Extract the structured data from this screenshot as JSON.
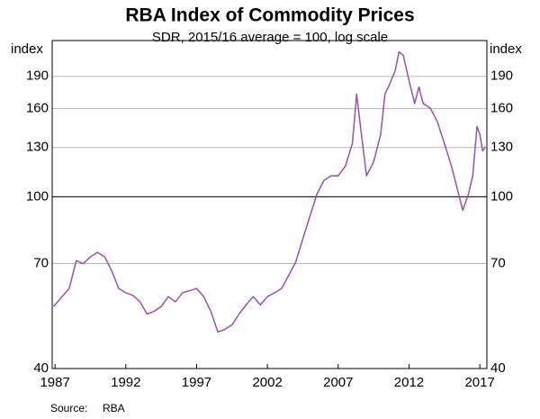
{
  "chart_data": {
    "type": "line",
    "title": "RBA Index of Commodity Prices",
    "subtitle": "SDR, 2015/16 average = 100, log scale",
    "y_label": "index",
    "source_label": "Source:",
    "source": "RBA",
    "color": "#9b4fb4",
    "log_y": true,
    "grid": true,
    "reference_line": 100,
    "xlim": [
      1986.8,
      2017.5
    ],
    "xticks": [
      1987,
      1992,
      1997,
      2002,
      2007,
      2012,
      2017
    ],
    "ylim": [
      40,
      230
    ],
    "yticks": [
      40,
      70,
      100,
      130,
      160,
      190
    ],
    "x": [
      1986.9,
      1987.5,
      1988.0,
      1988.5,
      1989.0,
      1989.5,
      1990.0,
      1990.5,
      1991.0,
      1991.5,
      1992.0,
      1992.5,
      1993.0,
      1993.5,
      1994.0,
      1994.5,
      1995.0,
      1995.5,
      1996.0,
      1996.5,
      1997.0,
      1997.5,
      1998.0,
      1998.5,
      1999.0,
      1999.5,
      2000.0,
      2000.5,
      2001.0,
      2001.5,
      2002.0,
      2002.5,
      2003.0,
      2003.5,
      2004.0,
      2004.5,
      2005.0,
      2005.5,
      2006.0,
      2006.5,
      2007.0,
      2007.5,
      2008.0,
      2008.3,
      2008.6,
      2009.0,
      2009.5,
      2010.0,
      2010.3,
      2010.6,
      2011.0,
      2011.3,
      2011.6,
      2012.0,
      2012.4,
      2012.7,
      2013.0,
      2013.5,
      2014.0,
      2014.5,
      2015.0,
      2015.5,
      2015.8,
      2016.2,
      2016.5,
      2016.8,
      2017.0,
      2017.2,
      2017.4
    ],
    "values": [
      55.7,
      58.7,
      61.3,
      71.1,
      70.0,
      72.6,
      74.3,
      72.6,
      67.4,
      61.3,
      59.9,
      59.1,
      57.1,
      53.5,
      54.3,
      55.7,
      58.7,
      57.1,
      59.9,
      60.6,
      61.3,
      58.7,
      54.3,
      48.6,
      49.3,
      50.5,
      53.5,
      56.2,
      58.7,
      56.2,
      58.7,
      59.9,
      61.3,
      65.7,
      70.6,
      79.9,
      90.1,
      101.5,
      109.2,
      111.8,
      111.8,
      117.6,
      132.8,
      172.8,
      142.9,
      111.8,
      120.4,
      139.5,
      172.8,
      181.3,
      194.9,
      216.5,
      212.4,
      185.7,
      164.4,
      179.6,
      164.4,
      160.5,
      149.3,
      132.8,
      117.6,
      101.5,
      93.0,
      101.5,
      111.8,
      145.4,
      139.5,
      127.6,
      130.6
    ]
  }
}
